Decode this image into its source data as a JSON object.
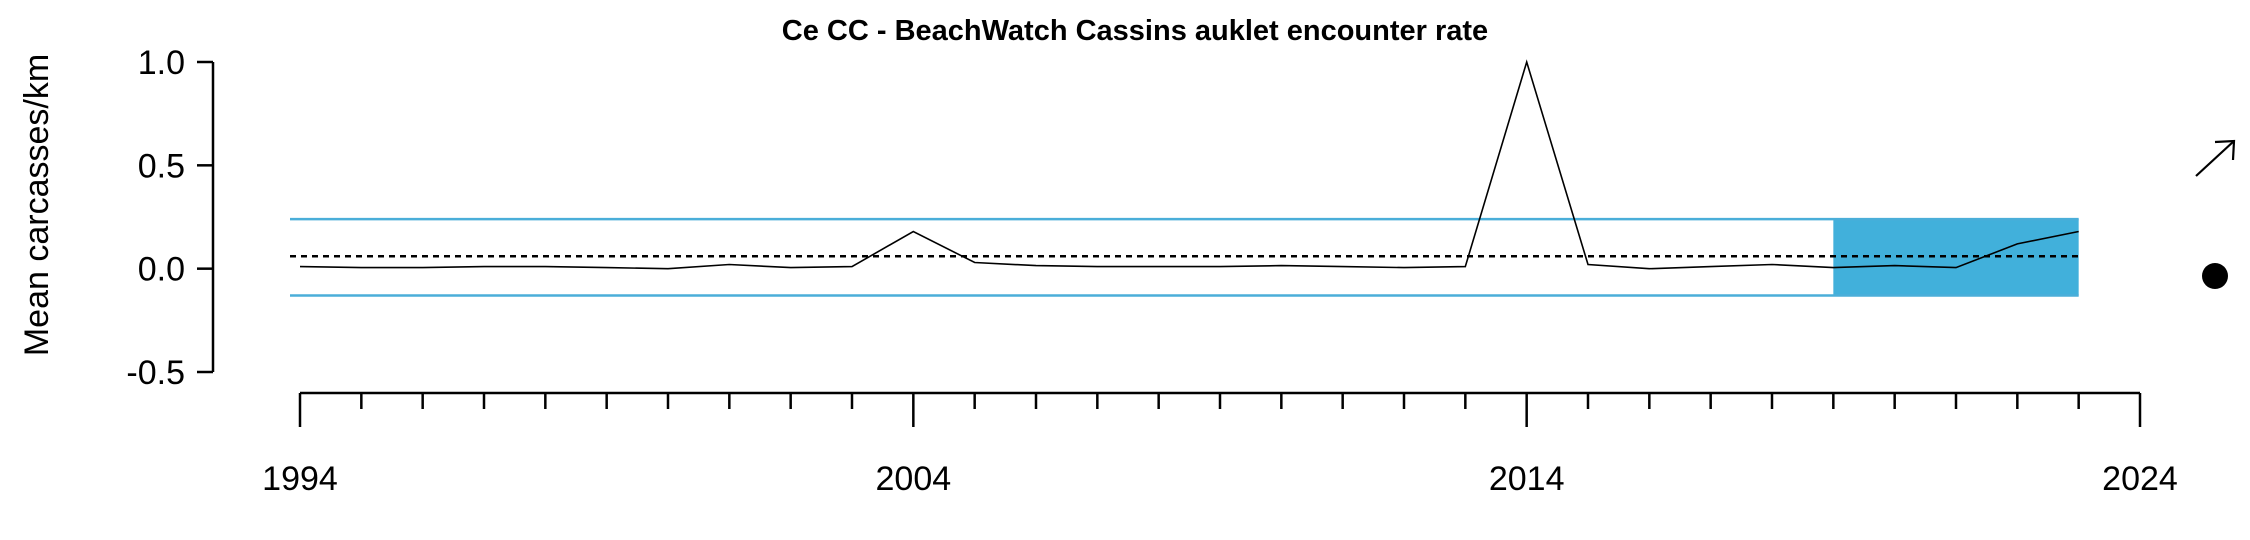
{
  "chart_data": {
    "type": "line",
    "title": "Ce CC - BeachWatch Cassins auklet encounter rate",
    "xlabel": "",
    "ylabel": "Mean carcasses/km",
    "xlim": [
      1994,
      2024
    ],
    "ylim": [
      -0.5,
      1.0
    ],
    "x_ticks": [
      1994,
      2004,
      2014,
      2024
    ],
    "y_ticks": [
      "1.0",
      "0.5",
      "0.0",
      "-0.5"
    ],
    "x_minor_tick_step": 1,
    "grid": false,
    "series": [
      {
        "x": [
          1994,
          1995,
          1996,
          1997,
          1998,
          1999,
          2000,
          2001,
          2002,
          2003,
          2004,
          2005,
          2006,
          2007,
          2008,
          2009,
          2010,
          2011,
          2012,
          2013,
          2014,
          2015,
          2016,
          2017,
          2018,
          2019,
          2020,
          2021,
          2022,
          2023
        ],
        "y": [
          0.01,
          0.005,
          0.005,
          0.01,
          0.01,
          0.005,
          0.0,
          0.02,
          0.005,
          0.01,
          0.18,
          0.03,
          0.015,
          0.01,
          0.01,
          0.01,
          0.015,
          0.01,
          0.005,
          0.01,
          1.0,
          0.02,
          0.0,
          0.01,
          0.02,
          0.005,
          0.015,
          0.005,
          0.12,
          0.18
        ],
        "color": "#000000"
      }
    ],
    "mean_line": 0.06,
    "upper_sd_line": 0.24,
    "lower_sd_line": -0.13,
    "sd_line_color": "#4aaed9",
    "shaded_period": {
      "x_start": 2019,
      "x_end": 2023,
      "color": "#41b0db"
    },
    "trend_indicator": "arrow-up-right",
    "mean_indicator": "filled-circle"
  }
}
